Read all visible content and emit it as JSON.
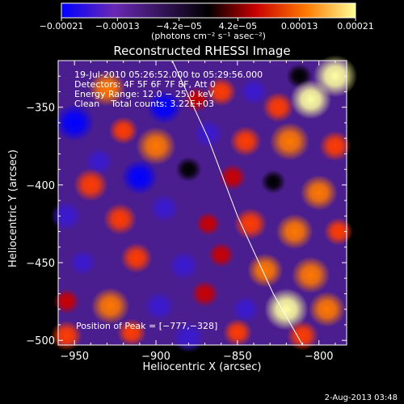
{
  "chart_data": {
    "type": "heatmap",
    "title": "Reconstructed RHESSI Image",
    "xlabel": "Heliocentric X (arcsec)",
    "ylabel": "Heliocentric Y (arcsec)",
    "xlim": [
      -960,
      -783
    ],
    "ylim": [
      -503,
      -320
    ],
    "x_ticks": [
      -950,
      -900,
      -850,
      -800
    ],
    "y_ticks": [
      -350,
      -400,
      -450,
      -500
    ],
    "x_tick_labels": [
      "−950",
      "−900",
      "−850",
      "−800"
    ],
    "y_tick_labels": [
      "−350",
      "−400",
      "−450",
      "−500"
    ],
    "colorbar": {
      "vmin": -0.00021,
      "vmax": 0.00021,
      "tick_values": [
        -0.00021,
        -0.00013,
        -4.2e-05,
        4.2e-05,
        0.00013,
        0.00021
      ],
      "tick_labels": [
        "−0.00021",
        "−0.00013",
        "−4.2e−05",
        "4.2e−05",
        "0.00013",
        "0.00021"
      ],
      "unit_label": "(photons cm⁻² s⁻¹ asec⁻²)",
      "colors": [
        "#0000ff",
        "#6a28b4",
        "#000000",
        "#c80000",
        "#ff7800",
        "#ffff96"
      ]
    },
    "annotations": {
      "time_range": "19-Jul-2010 05:26:52.000 to 05:29:56.000",
      "detectors": "Detectors: 4F 5F 6F 7F 8F, Att 0",
      "energy_range": "Energy Range: 12.0 − 25.0 keV",
      "clean_counts": "Clean    Total counts: 3.22E+03",
      "peak_position": "Position of Peak = [−777,−328]"
    },
    "limb_curve": [
      {
        "x": -890,
        "y": -320
      },
      {
        "x": -868,
        "y": -370
      },
      {
        "x": -850,
        "y": -420
      },
      {
        "x": -828,
        "y": -470
      },
      {
        "x": -810,
        "y": -503
      }
    ],
    "sources": [
      {
        "x": -930,
        "y": -338,
        "v": 0.75
      },
      {
        "x": -895,
        "y": -350,
        "v": -0.7
      },
      {
        "x": -875,
        "y": -345,
        "v": 0.35
      },
      {
        "x": -860,
        "y": -340,
        "v": 0.5
      },
      {
        "x": -840,
        "y": -340,
        "v": -0.45
      },
      {
        "x": -812,
        "y": -330,
        "v": -0.35
      },
      {
        "x": -805,
        "y": -345,
        "v": 0.9
      },
      {
        "x": -790,
        "y": -330,
        "v": 1.0
      },
      {
        "x": -825,
        "y": -350,
        "v": 0.55
      },
      {
        "x": -950,
        "y": -360,
        "v": -0.85
      },
      {
        "x": -920,
        "y": -365,
        "v": 0.45
      },
      {
        "x": -900,
        "y": -375,
        "v": 0.85
      },
      {
        "x": -868,
        "y": -367,
        "v": -0.5
      },
      {
        "x": -845,
        "y": -372,
        "v": 0.55
      },
      {
        "x": -818,
        "y": -372,
        "v": 0.85
      },
      {
        "x": -790,
        "y": -375,
        "v": 0.55
      },
      {
        "x": -935,
        "y": -385,
        "v": -0.45
      },
      {
        "x": -940,
        "y": -400,
        "v": 0.65
      },
      {
        "x": -910,
        "y": -395,
        "v": -0.75
      },
      {
        "x": -880,
        "y": -390,
        "v": -0.35
      },
      {
        "x": -853,
        "y": -395,
        "v": 0.4
      },
      {
        "x": -828,
        "y": -398,
        "v": -0.3
      },
      {
        "x": -800,
        "y": -405,
        "v": 0.75
      },
      {
        "x": -955,
        "y": -420,
        "v": -0.55
      },
      {
        "x": -922,
        "y": -422,
        "v": 0.6
      },
      {
        "x": -895,
        "y": -415,
        "v": -0.5
      },
      {
        "x": -868,
        "y": -425,
        "v": 0.3
      },
      {
        "x": -842,
        "y": -425,
        "v": 0.6
      },
      {
        "x": -815,
        "y": -430,
        "v": 0.75
      },
      {
        "x": -788,
        "y": -430,
        "v": 0.45
      },
      {
        "x": -945,
        "y": -450,
        "v": -0.4
      },
      {
        "x": -912,
        "y": -447,
        "v": 0.55
      },
      {
        "x": -883,
        "y": -452,
        "v": -0.55
      },
      {
        "x": -860,
        "y": -445,
        "v": 0.35
      },
      {
        "x": -833,
        "y": -455,
        "v": 0.7
      },
      {
        "x": -805,
        "y": -458,
        "v": 0.8
      },
      {
        "x": -955,
        "y": -475,
        "v": 0.35
      },
      {
        "x": -928,
        "y": -478,
        "v": 0.8
      },
      {
        "x": -898,
        "y": -478,
        "v": -0.55
      },
      {
        "x": -870,
        "y": -470,
        "v": 0.4
      },
      {
        "x": -845,
        "y": -480,
        "v": -0.45
      },
      {
        "x": -820,
        "y": -480,
        "v": 1.0
      },
      {
        "x": -795,
        "y": -480,
        "v": 0.75
      },
      {
        "x": -955,
        "y": -497,
        "v": 0.55
      },
      {
        "x": -915,
        "y": -495,
        "v": 0.45
      },
      {
        "x": -880,
        "y": -498,
        "v": -0.6
      },
      {
        "x": -850,
        "y": -495,
        "v": 0.45
      },
      {
        "x": -810,
        "y": -497,
        "v": 0.55
      }
    ]
  },
  "footer": {
    "date_stamp": "2-Aug-2013 03:48"
  }
}
